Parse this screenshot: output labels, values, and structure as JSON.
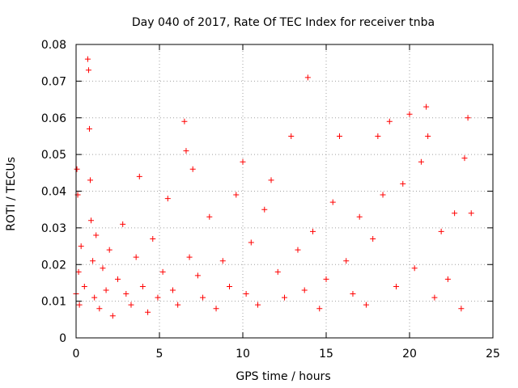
{
  "chart_data": {
    "type": "scatter",
    "title": "Day 040 of 2017, Rate Of TEC Index for receiver tnba",
    "xlabel": "GPS time / hours",
    "ylabel": "ROTI / TECUs",
    "xlim": [
      0,
      25
    ],
    "ylim": [
      0,
      0.08
    ],
    "xticks": [
      0,
      5,
      10,
      15,
      20,
      25
    ],
    "xtick_labels": [
      "0",
      "5",
      "10",
      "15",
      "20",
      "25"
    ],
    "yticks": [
      0,
      0.01,
      0.02,
      0.03,
      0.04,
      0.05,
      0.06,
      0.07,
      0.08
    ],
    "ytick_labels": [
      "0",
      "0.01",
      "0.02",
      "0.03",
      "0.04",
      "0.05",
      "0.06",
      "0.07",
      "0.08"
    ],
    "grid": true,
    "marker": "+",
    "color": "#ff0000",
    "series": [
      {
        "name": "ROTI",
        "x": [
          0.0,
          0.05,
          0.1,
          0.15,
          0.2,
          0.3,
          0.5,
          0.7,
          0.75,
          0.8,
          0.85,
          0.9,
          1.0,
          1.1,
          1.2,
          1.4,
          1.6,
          1.8,
          2.0,
          2.2,
          2.5,
          2.8,
          3.0,
          3.3,
          3.6,
          3.8,
          4.0,
          4.3,
          4.6,
          4.9,
          5.2,
          5.5,
          5.8,
          6.1,
          6.5,
          6.6,
          6.8,
          7.0,
          7.3,
          7.6,
          8.0,
          8.4,
          8.8,
          9.2,
          9.6,
          10.0,
          10.2,
          10.5,
          10.9,
          11.3,
          11.7,
          12.1,
          12.5,
          12.9,
          13.3,
          13.7,
          13.9,
          14.2,
          14.6,
          15.0,
          15.4,
          15.8,
          16.2,
          16.6,
          17.0,
          17.4,
          17.8,
          18.1,
          18.4,
          18.8,
          19.2,
          19.6,
          20.0,
          20.3,
          20.7,
          21.0,
          21.1,
          21.5,
          21.9,
          22.3,
          22.7,
          23.1,
          23.3,
          23.5,
          23.7
        ],
        "y": [
          0.012,
          0.046,
          0.039,
          0.018,
          0.009,
          0.025,
          0.014,
          0.076,
          0.073,
          0.057,
          0.043,
          0.032,
          0.021,
          0.011,
          0.028,
          0.008,
          0.019,
          0.013,
          0.024,
          0.006,
          0.016,
          0.031,
          0.012,
          0.009,
          0.022,
          0.044,
          0.014,
          0.007,
          0.027,
          0.011,
          0.018,
          0.038,
          0.013,
          0.009,
          0.059,
          0.051,
          0.022,
          0.046,
          0.017,
          0.011,
          0.033,
          0.008,
          0.021,
          0.014,
          0.039,
          0.048,
          0.012,
          0.026,
          0.009,
          0.035,
          0.043,
          0.018,
          0.011,
          0.055,
          0.024,
          0.013,
          0.071,
          0.029,
          0.008,
          0.016,
          0.037,
          0.055,
          0.021,
          0.012,
          0.033,
          0.009,
          0.027,
          0.055,
          0.039,
          0.059,
          0.014,
          0.042,
          0.061,
          0.019,
          0.048,
          0.063,
          0.055,
          0.011,
          0.029,
          0.016,
          0.034,
          0.008,
          0.049,
          0.06,
          0.034
        ]
      }
    ]
  }
}
